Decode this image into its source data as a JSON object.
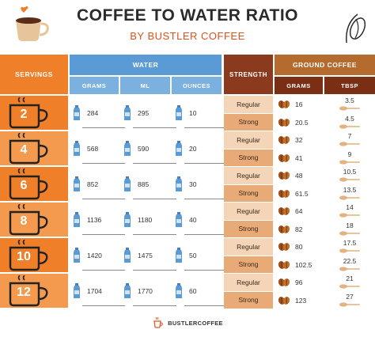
{
  "title": "COFFEE TO WATER RATIO",
  "subtitle": "BY BUSTLER COFFEE",
  "headers": {
    "servings": "SERVINGS",
    "water": "WATER",
    "water_grams": "GRAMS",
    "water_ml": "ML",
    "water_ounces": "OUNCES",
    "strength": "STRENGTH",
    "ground_coffee": "GROUND COFFEE",
    "coffee_grams": "GRAMS",
    "coffee_tbsp": "TBSP"
  },
  "servings": [
    {
      "count": "2",
      "grams": "284",
      "ml": "295",
      "ounces": "10",
      "regular": {
        "label": "Regular",
        "grams": "16",
        "tbsp": "3.5"
      },
      "strong": {
        "label": "Strong",
        "grams": "20.5",
        "tbsp": "4.5"
      }
    },
    {
      "count": "4",
      "grams": "568",
      "ml": "590",
      "ounces": "20",
      "regular": {
        "label": "Regular",
        "grams": "32",
        "tbsp": "7"
      },
      "strong": {
        "label": "Strong",
        "grams": "41",
        "tbsp": "9"
      }
    },
    {
      "count": "6",
      "grams": "852",
      "ml": "885",
      "ounces": "30",
      "regular": {
        "label": "Regular",
        "grams": "48",
        "tbsp": "10.5"
      },
      "strong": {
        "label": "Strong",
        "grams": "61.5",
        "tbsp": "13.5"
      }
    },
    {
      "count": "8",
      "grams": "1136",
      "ml": "1180",
      "ounces": "40",
      "regular": {
        "label": "Regular",
        "grams": "64",
        "tbsp": "14"
      },
      "strong": {
        "label": "Strong",
        "grams": "82",
        "tbsp": "18"
      }
    },
    {
      "count": "10",
      "grams": "1420",
      "ml": "1475",
      "ounces": "50",
      "regular": {
        "label": "Regular",
        "grams": "80",
        "tbsp": "17.5"
      },
      "strong": {
        "label": "Strong",
        "grams": "102.5",
        "tbsp": "22.5"
      }
    },
    {
      "count": "12",
      "grams": "1704",
      "ml": "1770",
      "ounces": "60",
      "regular": {
        "label": "Regular",
        "grams": "96",
        "tbsp": "21"
      },
      "strong": {
        "label": "Strong",
        "grams": "123",
        "tbsp": "27"
      }
    }
  ],
  "footer": {
    "brand": "BUSTLERCOFFEE"
  },
  "colors": {
    "servings_orange": "#f07f2a",
    "water_blue": "#5b9bd5",
    "strength_brown": "#8b3a1e",
    "ground_brown": "#b56a2e",
    "regular_bg": "#f5d5b8",
    "strong_bg": "#e8ab78"
  },
  "icons": {
    "header_left": "coffee-cup-icon",
    "header_right": "coffee-bean-icon",
    "water": "water-bottle-icon",
    "coffee_grams": "coffee-beans-icon",
    "tbsp": "spoon-icon"
  }
}
